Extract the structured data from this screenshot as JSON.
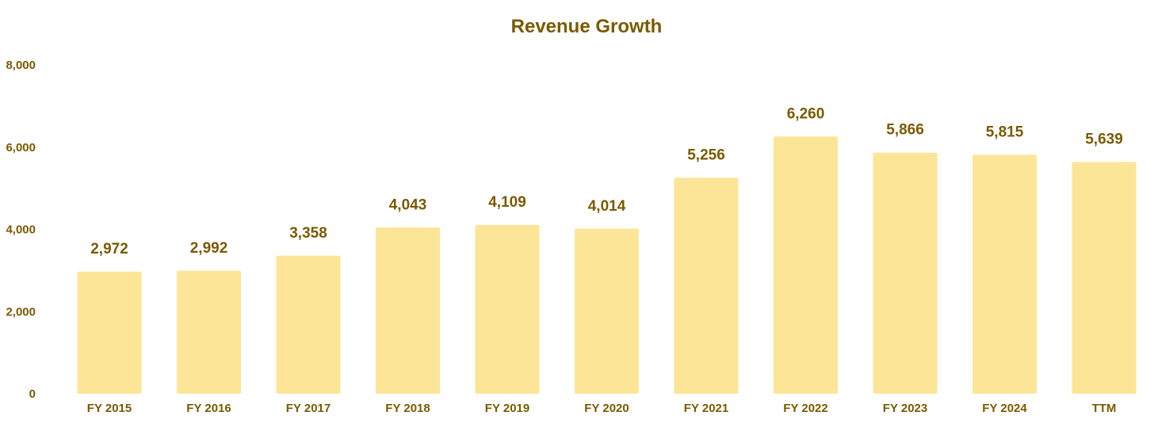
{
  "chart_data": {
    "type": "bar",
    "title": "Revenue Growth",
    "xlabel": "",
    "ylabel": "",
    "ylim": [
      0,
      8000
    ],
    "yticks": [
      "0",
      "2,000",
      "4,000",
      "6,000",
      "8,000"
    ],
    "categories": [
      "FY 2015",
      "FY 2016",
      "FY 2017",
      "FY 2018",
      "FY 2019",
      "FY 2020",
      "FY 2021",
      "FY 2022",
      "FY 2023",
      "FY 2024",
      "TTM"
    ],
    "values": [
      2972,
      2992,
      3358,
      4043,
      4109,
      4014,
      5256,
      6260,
      5866,
      5815,
      5639
    ],
    "value_labels": [
      "2,972",
      "2,992",
      "3,358",
      "4,043",
      "4,109",
      "4,014",
      "5,256",
      "6,260",
      "5,866",
      "5,815",
      "5,639"
    ],
    "grid": false,
    "legend": "none",
    "colors": {
      "bar": "#fde597",
      "text": "#7a5a00"
    }
  }
}
